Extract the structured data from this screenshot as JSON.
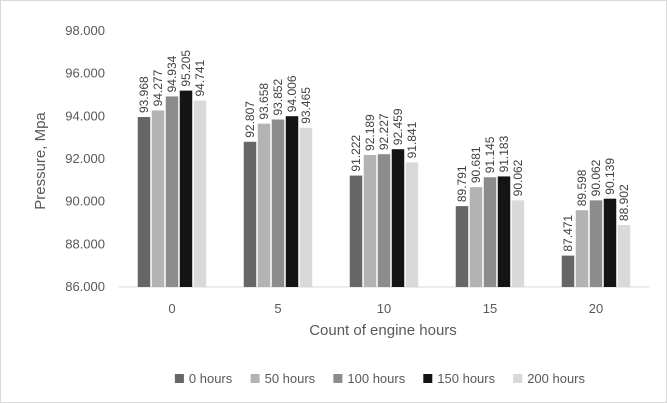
{
  "chart_data": {
    "type": "bar",
    "categories": [
      "0",
      "5",
      "10",
      "15",
      "20"
    ],
    "xlabel": "Count of engine hours",
    "ylabel": "Pressure, Mpa",
    "ylim": [
      86,
      98
    ],
    "y_ticks": [
      "86.000",
      "88.000",
      "90.000",
      "92.000",
      "94.000",
      "96.000",
      "98.000"
    ],
    "grid": false,
    "legend": "bottom",
    "series": [
      {
        "name": "0 hours",
        "color": "#666666",
        "values": [
          93.968,
          92.807,
          91.222,
          89.791,
          87.471
        ],
        "labels": [
          "93.968",
          "92.807",
          "91.222",
          "89.791",
          "87.471"
        ]
      },
      {
        "name": "50 hours",
        "color": "#b3b3b3",
        "values": [
          94.277,
          93.658,
          92.189,
          90.681,
          89.598
        ],
        "labels": [
          "94.277",
          "93.658",
          "92.189",
          "90.681",
          "89.598"
        ]
      },
      {
        "name": "100 hours",
        "color": "#8c8c8c",
        "values": [
          94.934,
          93.852,
          92.227,
          91.145,
          90.062
        ],
        "labels": [
          "94.934",
          "93.852",
          "92.227",
          "91.145",
          "90.062"
        ]
      },
      {
        "name": "150 hours",
        "color": "#141414",
        "values": [
          95.205,
          94.006,
          92.459,
          91.183,
          90.139
        ],
        "labels": [
          "95.205",
          "94.006",
          "92.459",
          "91.183",
          "90.139"
        ]
      },
      {
        "name": "200 hours",
        "color": "#d9d9d9",
        "values": [
          94.741,
          93.465,
          91.841,
          90.062,
          88.902
        ],
        "labels": [
          "94.741",
          "93.465",
          "91.841",
          "90.062",
          "88.902"
        ]
      }
    ]
  }
}
